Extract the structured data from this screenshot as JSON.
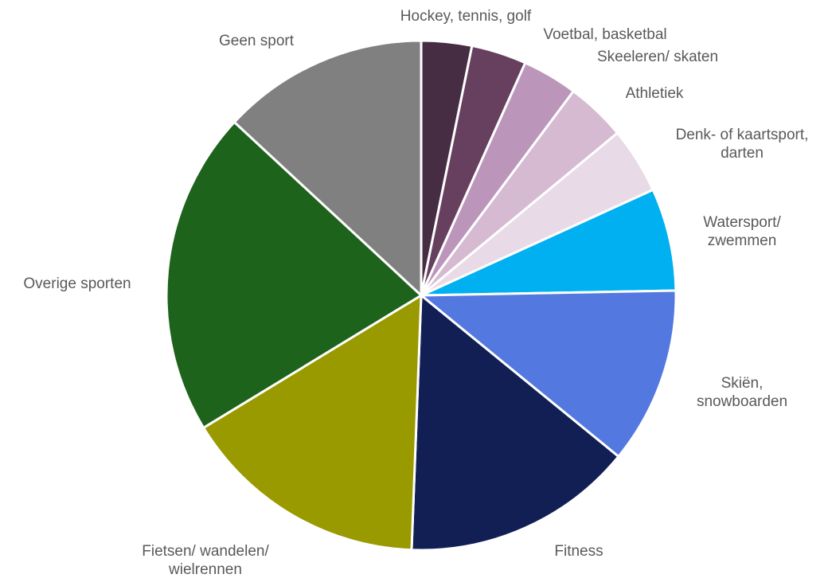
{
  "chart_data": {
    "type": "pie",
    "title": "",
    "unit": "%",
    "start_angle_deg": 0,
    "direction": "clockwise",
    "legend": "none",
    "slices": [
      {
        "label": "Hockey, tennis, golf",
        "value": 3.2,
        "color": "#472D43"
      },
      {
        "label": "Voetbal, basketbal",
        "value": 3.5,
        "color": "#67405F"
      },
      {
        "label": "Skeeleren/ skaten",
        "value": 3.5,
        "color": "#BB96BA"
      },
      {
        "label": "Athletiek",
        "value": 3.8,
        "color": "#D5BAD2"
      },
      {
        "label": "Denk- of kaartsport, darten",
        "value": 4.2,
        "color": "#E8DBE7"
      },
      {
        "label": "Watersport/ zwemmen",
        "value": 6.5,
        "color": "#00B0F0"
      },
      {
        "label": "Skiën, snowboarden",
        "value": 11.2,
        "color": "#5378DF"
      },
      {
        "label": "Fitness",
        "value": 14.7,
        "color": "#111F55"
      },
      {
        "label": "Fietsen/ wandelen/ wielrennen",
        "value": 15.7,
        "color": "#999900"
      },
      {
        "label": "Overige sporten",
        "value": 20.6,
        "color": "#1E631B"
      },
      {
        "label": "Geen sport",
        "value": 13.1,
        "color": "#808080"
      }
    ]
  }
}
